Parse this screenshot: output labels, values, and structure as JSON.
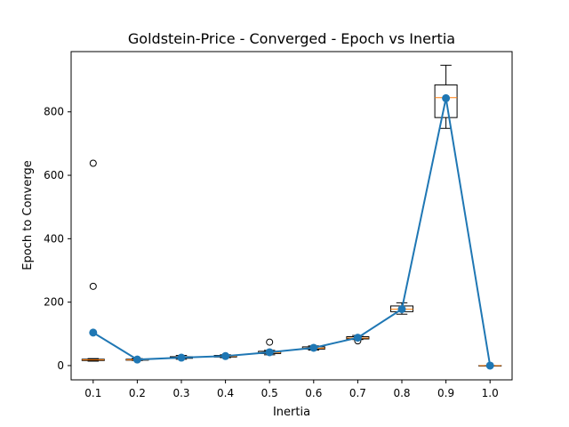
{
  "chart_data": {
    "type": "box-line",
    "title": "Goldstein-Price - Converged - Epoch vs Inertia",
    "xlabel": "Inertia",
    "ylabel": "Epoch to Converge",
    "categories": [
      "0.1",
      "0.2",
      "0.3",
      "0.4",
      "0.5",
      "0.6",
      "0.7",
      "0.8",
      "0.9",
      "1.0"
    ],
    "yticks": [
      "0",
      "200",
      "400",
      "600",
      "800"
    ],
    "ylim": [
      -45,
      990
    ],
    "grid": false,
    "legend": "none",
    "colors": {
      "line": "#1f77b4",
      "median": "#ff7f0e",
      "box": "#000000"
    },
    "boxes": [
      {
        "q1": 16,
        "median": 18,
        "q3": 20,
        "whislo": 14,
        "whishi": 22,
        "fliers": [
          250,
          638
        ]
      },
      {
        "q1": 17,
        "median": 18,
        "q3": 20,
        "whislo": 16,
        "whishi": 22,
        "fliers": []
      },
      {
        "q1": 23,
        "median": 25,
        "q3": 28,
        "whislo": 20,
        "whishi": 32,
        "fliers": []
      },
      {
        "q1": 27,
        "median": 29,
        "q3": 32,
        "whislo": 25,
        "whishi": 34,
        "fliers": []
      },
      {
        "q1": 38,
        "median": 41,
        "q3": 45,
        "whislo": 34,
        "whishi": 48,
        "fliers": [
          74
        ]
      },
      {
        "q1": 52,
        "median": 55,
        "q3": 59,
        "whislo": 49,
        "whishi": 62,
        "fliers": []
      },
      {
        "q1": 84,
        "median": 87,
        "q3": 91,
        "whislo": 82,
        "whishi": 95,
        "fliers": [
          78
        ]
      },
      {
        "q1": 170,
        "median": 178,
        "q3": 188,
        "whislo": 162,
        "whishi": 198,
        "fliers": []
      },
      {
        "q1": 782,
        "median": 845,
        "q3": 885,
        "whislo": 748,
        "whishi": 947,
        "fliers": []
      },
      {
        "q1": 0,
        "median": 0,
        "q3": 0,
        "whislo": 0,
        "whishi": 0,
        "fliers": []
      }
    ],
    "mean_line": [
      104,
      19,
      25,
      30,
      42,
      56,
      88,
      178,
      843,
      0
    ]
  }
}
